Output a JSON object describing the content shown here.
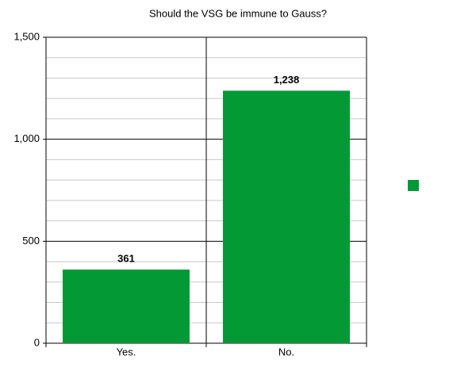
{
  "chart_data": {
    "type": "bar",
    "title": "Should the VSG be immune to Gauss?",
    "categories": [
      "Yes.",
      "No."
    ],
    "values": [
      361,
      1238
    ],
    "value_labels": [
      "361",
      "1,238"
    ],
    "color": "#039a36",
    "ylim": [
      0,
      1500
    ],
    "yticks": [
      0,
      500,
      {
        "value": 1000,
        "label": "1,000"
      },
      {
        "value": 1500,
        "label": "1,500"
      }
    ],
    "minor_yticks": [
      100,
      200,
      300,
      400,
      600,
      700,
      800,
      900,
      1100,
      1200,
      1300,
      1400
    ],
    "grid": true,
    "legend": "right"
  }
}
